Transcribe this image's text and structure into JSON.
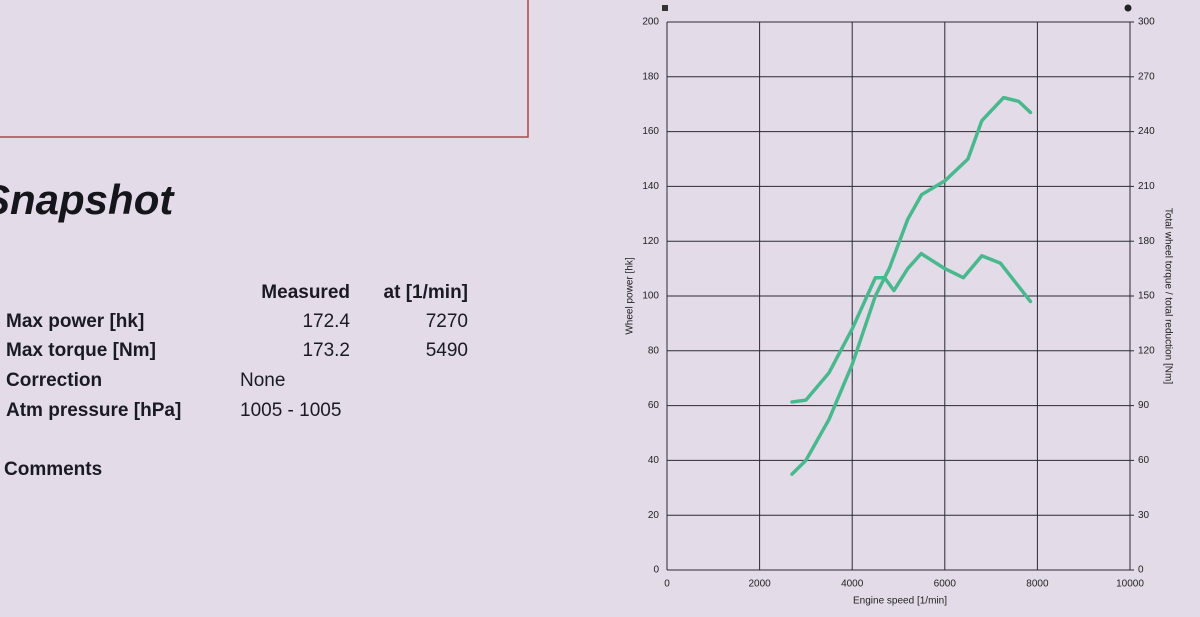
{
  "document": {
    "heading": "Snapshot",
    "table": {
      "header": [
        "Measured",
        "at [1/min]"
      ],
      "rows": [
        [
          "Max power [hk]",
          172.4,
          7270
        ],
        [
          "Max torque [Nm]",
          173.2,
          5490
        ],
        [
          "Correction",
          "None"
        ],
        [
          "Atm pressure [hPa]",
          "1005 - 1005"
        ]
      ]
    },
    "comments": "Comments"
  },
  "chart_data": {
    "type": "line",
    "x_label": "Engine speed [1/min]",
    "y_label": "Wheel power [hk]",
    "y2_label": "Total wheel torque / total reduction [Nm]",
    "xlim": [
      0,
      10000
    ],
    "xticks": [
      0,
      2000,
      4000,
      6000,
      8000,
      10000
    ],
    "ylim": [
      0,
      200
    ],
    "yticks": [
      0,
      20,
      40,
      60,
      80,
      100,
      120,
      140,
      160,
      180,
      200
    ],
    "y2lim": [
      0,
      300
    ],
    "y2ticks": [
      0,
      30,
      60,
      90,
      120,
      150,
      180,
      210,
      240,
      270,
      300
    ],
    "grid": true,
    "series": [
      {
        "color": "#49b98d",
        "x": [
          2700,
          3000,
          3500,
          4000,
          4500,
          4800,
          5200,
          5500,
          6000,
          6500,
          6800,
          7270,
          7600,
          7850
        ],
        "values": [
          35,
          40,
          55,
          75,
          100,
          110,
          128,
          137,
          142,
          150,
          164,
          172.4,
          171,
          167
        ]
      },
      {
        "color": "#49b98d",
        "axis": "y2",
        "x": [
          2700,
          3000,
          3500,
          4000,
          4500,
          4700,
          4900,
          5200,
          5490,
          6000,
          6400,
          6800,
          7200,
          7850
        ],
        "values": [
          92,
          93,
          108,
          132,
          160,
          160,
          153,
          165,
          173.2,
          165,
          160,
          172,
          168,
          147
        ]
      }
    ]
  }
}
